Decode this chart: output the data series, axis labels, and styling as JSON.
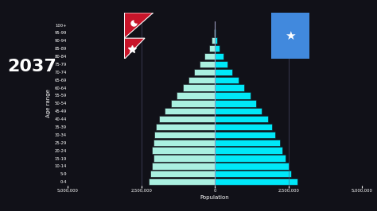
{
  "year": "2037",
  "age_groups": [
    "0-4",
    "5-9",
    "10-14",
    "15-19",
    "20-24",
    "25-29",
    "30-34",
    "35-39",
    "40-44",
    "45-49",
    "50-54",
    "55-59",
    "60-64",
    "65-69",
    "70-74",
    "75-79",
    "80-84",
    "85-89",
    "90-94",
    "95-99",
    "100+"
  ],
  "nepal": [
    2250000,
    2200000,
    2150000,
    2100000,
    2150000,
    2100000,
    2050000,
    2000000,
    1900000,
    1700000,
    1500000,
    1300000,
    1100000,
    900000,
    700000,
    520000,
    350000,
    200000,
    100000,
    40000,
    10000
  ],
  "somalia": [
    2800000,
    2600000,
    2500000,
    2400000,
    2300000,
    2200000,
    2050000,
    1950000,
    1800000,
    1600000,
    1400000,
    1200000,
    1000000,
    800000,
    600000,
    430000,
    280000,
    160000,
    80000,
    30000,
    8000
  ],
  "nepal_color": "#aaf0e0",
  "somalia_color": "#00e8f8",
  "background_color": "#111118",
  "text_color": "#ffffff",
  "grid_color": "#555577",
  "xlim": 5000000,
  "xlabel": "Population",
  "ylabel": "Age range",
  "title_year": "2037",
  "tick_values": [
    -5000000,
    -2500000,
    0,
    2500000,
    5000000
  ],
  "tick_labels": [
    "5,000,000",
    "2,500,000",
    "0",
    "2,500,000",
    "5,000,000"
  ]
}
